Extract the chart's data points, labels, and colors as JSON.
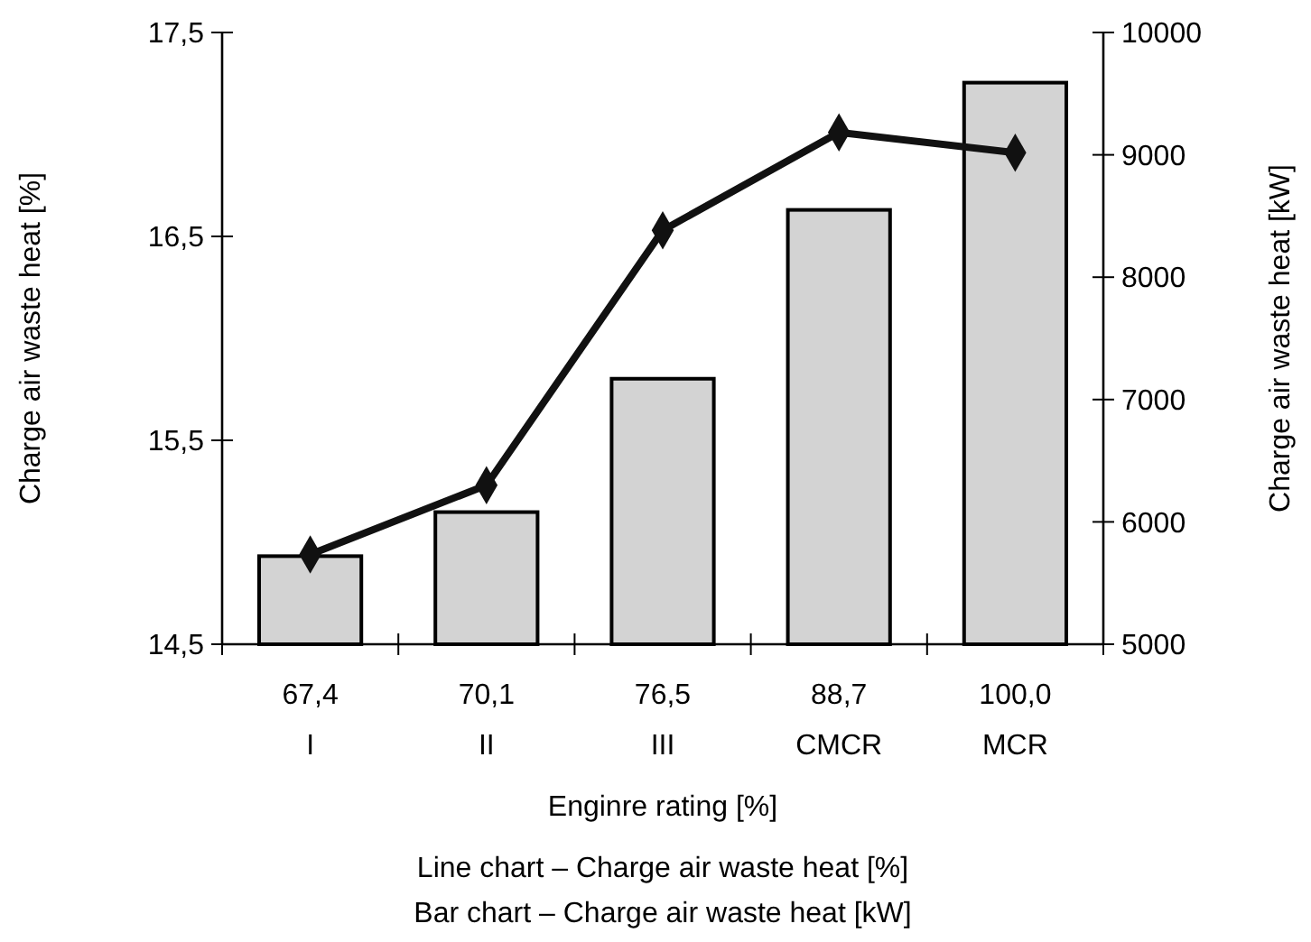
{
  "chart_data": {
    "type": "bar",
    "xlabel": "Enginre rating [%]",
    "ylabel": "Charge air waste heat [%]",
    "y2label": "Charge air waste heat [kW]",
    "categories": [
      "67,4\nI",
      "70,1\nII",
      "76,5\nIII",
      "88,7\nCMCR",
      "100,0\nMCR"
    ],
    "series": [
      {
        "axis": "y2",
        "color": "#d3d3d3",
        "values": [
          5720,
          6080,
          7170,
          8550,
          9590
        ]
      },
      {
        "type": "line",
        "axis": "y",
        "color": "#111111",
        "marker": "diamond",
        "line_style": "solid",
        "values": [
          14.94,
          15.28,
          16.53,
          17.01,
          16.91
        ]
      }
    ],
    "ylim": [
      14.5,
      17.5
    ],
    "yticks": [
      {
        "value": 14.5,
        "label": "14,5"
      },
      {
        "value": 15.5,
        "label": "15,5"
      },
      {
        "value": 16.5,
        "label": "16,5"
      },
      {
        "value": 17.5,
        "label": "17,5"
      }
    ],
    "y2lim": [
      5000,
      10000
    ],
    "y2ticks": [
      5000,
      6000,
      7000,
      8000,
      9000,
      10000
    ],
    "grid": false,
    "annotations": [
      "Line chart – Charge air waste heat [%]",
      "Bar chart – Charge air waste heat [kW]"
    ]
  }
}
